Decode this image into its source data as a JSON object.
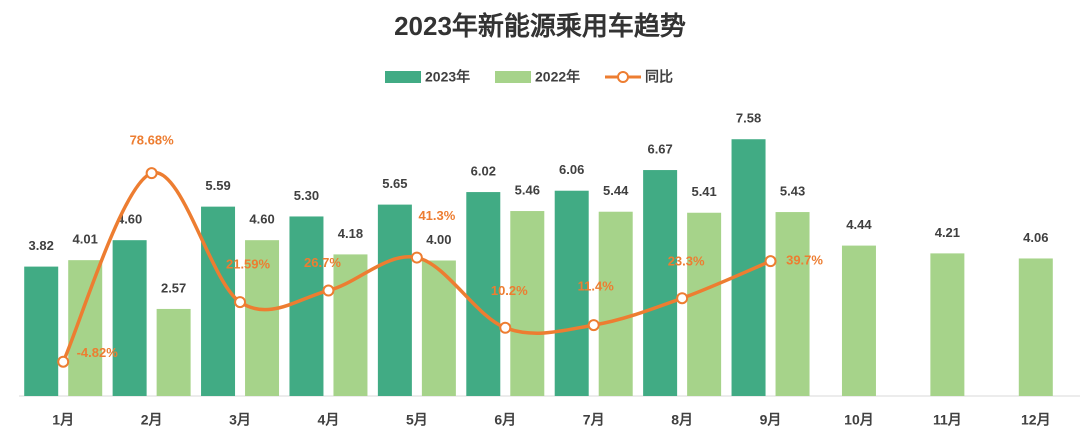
{
  "chart_data": {
    "type": "bar-line",
    "title": "2023年新能源乘用车趋势",
    "categories": [
      "1月",
      "2月",
      "3月",
      "4月",
      "5月",
      "6月",
      "7月",
      "8月",
      "9月",
      "10月",
      "11月",
      "12月"
    ],
    "series": [
      {
        "name": "2023年",
        "type": "bar",
        "color": "#41ab84",
        "values": [
          3.82,
          4.6,
          5.59,
          5.3,
          5.65,
          6.02,
          6.06,
          6.67,
          7.58,
          null,
          null,
          null
        ],
        "value_labels": [
          "3.82",
          "4.60",
          "5.59",
          "5.30",
          "5.65",
          "6.02",
          "6.06",
          "6.67",
          "7.58",
          null,
          null,
          null
        ]
      },
      {
        "name": "2022年",
        "type": "bar",
        "color": "#a6d38a",
        "values": [
          4.01,
          2.57,
          4.6,
          4.18,
          4.0,
          5.46,
          5.44,
          5.41,
          5.43,
          4.44,
          4.21,
          4.06
        ],
        "value_labels": [
          "4.01",
          "2.57",
          "4.60",
          "4.18",
          "4.00",
          "5.46",
          "5.44",
          "5.41",
          "5.43",
          "4.44",
          "4.21",
          "4.06"
        ]
      },
      {
        "name": "同比",
        "type": "line",
        "axis": "y2",
        "color": "#ed7d31",
        "values": [
          -4.82,
          78.68,
          21.59,
          26.7,
          41.3,
          10.2,
          11.4,
          23.3,
          39.7,
          null,
          null,
          null
        ],
        "value_labels": [
          "-4.82%",
          "78.68%",
          "21.59%",
          "26.7%",
          "41.3%",
          "10.2%",
          "11.4%",
          "23.3%",
          "39.7%",
          null,
          null,
          null
        ]
      }
    ],
    "ylim": [
      0,
      8
    ],
    "y2lim": [
      -20,
      100
    ],
    "legend": "top"
  }
}
